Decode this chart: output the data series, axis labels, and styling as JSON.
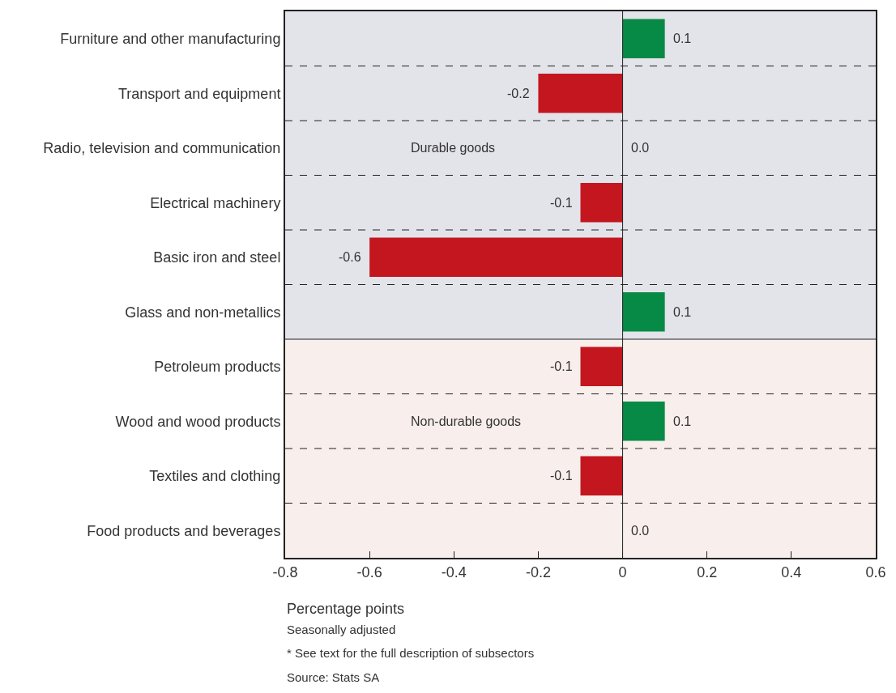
{
  "chart_data": {
    "type": "bar",
    "orientation": "horizontal",
    "categories": [
      "Furniture and other manufacturing",
      "Transport and equipment",
      "Radio, television and communication",
      "Electrical machinery",
      "Basic iron and steel",
      "Glass and non-metallics",
      "Petroleum products",
      "Wood and wood products",
      "Textiles and clothing",
      "Food products and beverages"
    ],
    "values": [
      0.1,
      -0.2,
      0.0,
      -0.1,
      -0.6,
      0.1,
      -0.1,
      0.1,
      -0.1,
      0.0
    ],
    "value_labels": [
      "0.1",
      "-0.2",
      "0.0",
      "-0.1",
      "-0.6",
      "0.1",
      "-0.1",
      "0.1",
      "-0.1",
      "0.0"
    ],
    "colors": [
      "#078a46",
      "#c4161e",
      "#c4161e",
      "#c4161e",
      "#c4161e",
      "#078a46",
      "#c4161e",
      "#078a46",
      "#c4161e",
      "#c4161e"
    ],
    "xlim": [
      -0.8,
      0.6
    ],
    "xticks": [
      -0.8,
      -0.6,
      -0.4,
      -0.2,
      {
        "value": 0,
        "label": "0"
      },
      0.2,
      0.4,
      0.6
    ],
    "xlabel": "Percentage points",
    "bands": [
      {
        "axis": "y",
        "from": "Furniture and other manufacturing",
        "to": "Glass and non-metallics",
        "label": "Durable goods",
        "color": "#e3e3ea"
      },
      {
        "axis": "y",
        "from": "Petroleum products",
        "to": "Food products and beverages",
        "label": "Non-durable goods",
        "color": "#f8eeec"
      }
    ],
    "ref_lines": [
      {
        "axis": "x",
        "value": 0,
        "color": "#222222"
      }
    ],
    "grid": "y",
    "legend": false,
    "annotations": [
      "Seasonally adjusted",
      "* See text for the full description of subsectors",
      "Source: Stats SA"
    ]
  }
}
